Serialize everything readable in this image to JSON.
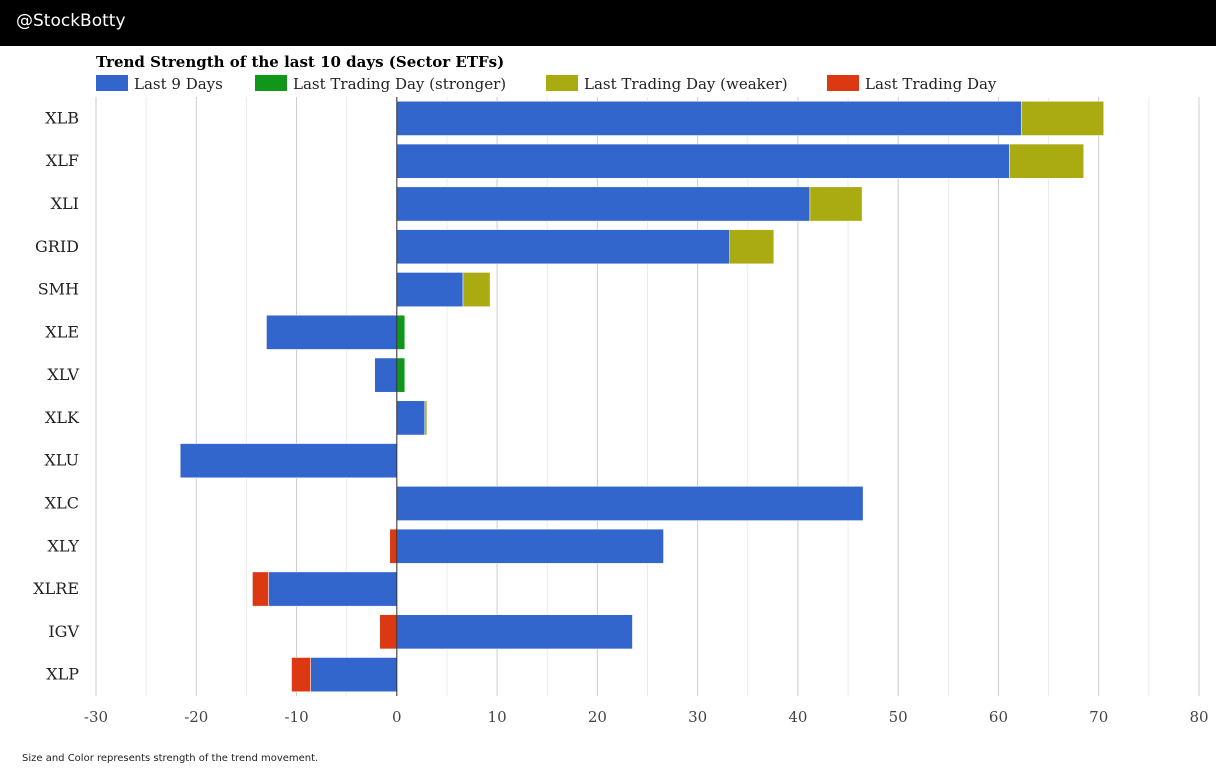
{
  "header": {
    "brand": "@StockBotty"
  },
  "footnote": "Size and Color represents strength of the trend movement.",
  "colors": {
    "last9": "#3366cc",
    "stronger": "#109618",
    "weaker": "#aaaa11",
    "last_day": "#dc3912",
    "grid": "#cccccc",
    "axis": "#333333"
  },
  "chart_data": {
    "type": "bar",
    "orientation": "horizontal",
    "stacked": true,
    "title": "Trend Strength of the last 10 days (Sector ETFs)",
    "legend": [
      "Last 9 Days",
      "Last Trading Day (stronger)",
      "Last Trading Day (weaker)",
      "Last Trading Day"
    ],
    "legend_position": "top",
    "categories": [
      "XLB",
      "XLF",
      "XLI",
      "GRID",
      "SMH",
      "XLE",
      "XLV",
      "XLK",
      "XLU",
      "XLC",
      "XLY",
      "XLRE",
      "IGV",
      "XLP"
    ],
    "series": [
      {
        "name": "Last 9 Days",
        "values": [
          62.3,
          61.1,
          41.2,
          33.2,
          6.6,
          -13.0,
          -2.2,
          2.8,
          -21.6,
          46.5,
          26.6,
          -12.8,
          23.5,
          -8.6
        ]
      },
      {
        "name": "Last Trading Day (stronger)",
        "values": [
          0,
          0,
          0,
          0,
          0,
          0.8,
          0.8,
          0,
          0,
          0,
          0,
          0,
          0,
          0
        ]
      },
      {
        "name": "Last Trading Day (weaker)",
        "values": [
          8.2,
          7.4,
          5.2,
          4.4,
          2.7,
          0,
          0,
          0.2,
          0,
          0,
          0,
          0,
          0,
          0
        ]
      },
      {
        "name": "Last Trading Day",
        "values": [
          0,
          0,
          0,
          0,
          0,
          0,
          0,
          0,
          0,
          0,
          -0.7,
          -1.6,
          -1.7,
          -1.9
        ]
      }
    ],
    "xlim": [
      -30,
      80
    ],
    "xticks": [
      -30,
      -20,
      -10,
      0,
      10,
      20,
      30,
      40,
      50,
      60,
      70,
      80
    ],
    "minor_grid": true,
    "xlabel": "",
    "ylabel": ""
  }
}
